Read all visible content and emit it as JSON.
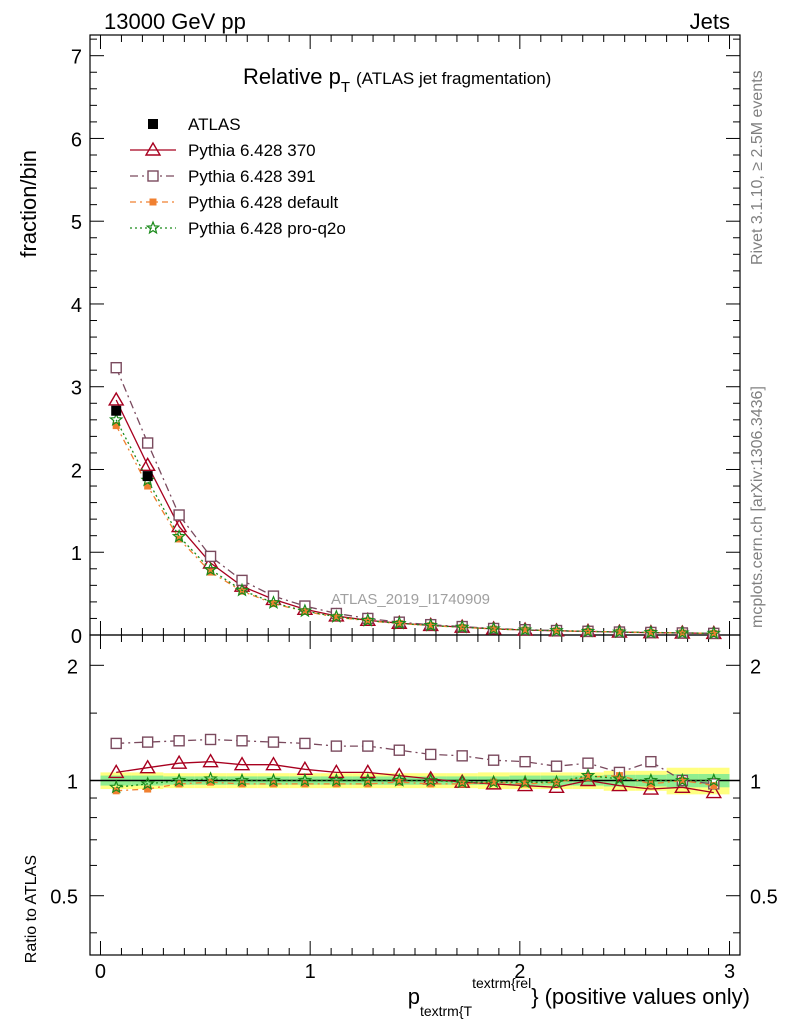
{
  "header": {
    "left": "13000 GeV pp",
    "right": "Jets"
  },
  "side_text": {
    "upper": "Rivet 3.1.10, ≥ 2.5M events",
    "lower": "mcplots.cern.ch [arXiv:1306.3436]"
  },
  "analysis_label": "ATLAS_2019_I1740909",
  "chart_data": [
    {
      "type": "line",
      "panel": "main",
      "title_main": "Relative p",
      "title_sub": "T",
      "title_rest": "(ATLAS jet fragmentation)",
      "ylabel": "fraction/bin",
      "xlim": [
        -0.05,
        3.05
      ],
      "ylim": [
        0,
        7.25
      ],
      "y_ticks": [
        "0",
        "1",
        "2",
        "3",
        "4",
        "5",
        "6",
        "7"
      ],
      "grid": false,
      "legend_position": "top-left",
      "x": [
        0.075,
        0.225,
        0.375,
        0.525,
        0.675,
        0.825,
        0.975,
        1.125,
        1.275,
        1.425,
        1.575,
        1.725,
        1.875,
        2.025,
        2.175,
        2.325,
        2.475,
        2.625,
        2.775,
        2.925
      ],
      "series": [
        {
          "name": "ATLAS",
          "color": "#000000",
          "marker": "square-filled",
          "values": [
            2.71,
            1.92,
            1.18,
            0.78,
            0.54,
            0.39,
            0.29,
            0.22,
            0.175,
            0.14,
            0.115,
            0.095,
            0.075,
            0.062,
            0.052,
            0.043,
            0.036,
            0.03,
            0.025,
            0.021
          ]
        },
        {
          "name": "Pythia 6.428 370",
          "color": "#a8001f",
          "marker": "triangle-open",
          "dash": "solid",
          "values": [
            2.84,
            2.05,
            1.31,
            0.87,
            0.59,
            0.43,
            0.31,
            0.23,
            0.178,
            0.142,
            0.116,
            0.095,
            0.074,
            0.06,
            0.05,
            0.043,
            0.035,
            0.028,
            0.024,
            0.019
          ]
        },
        {
          "name": "Pythia 6.428 391",
          "color": "#7a4a5e",
          "marker": "square-open",
          "dash": "dashdot",
          "values": [
            3.23,
            2.32,
            1.45,
            0.95,
            0.66,
            0.47,
            0.35,
            0.26,
            0.2,
            0.155,
            0.125,
            0.102,
            0.079,
            0.064,
            0.054,
            0.045,
            0.036,
            0.031,
            0.025,
            0.02
          ]
        },
        {
          "name": "Pythia 6.428 default",
          "color": "#f08030",
          "marker": "square-filled-small",
          "dash": "dashdot-orange",
          "values": [
            2.53,
            1.8,
            1.16,
            0.76,
            0.53,
            0.38,
            0.285,
            0.215,
            0.172,
            0.138,
            0.113,
            0.092,
            0.073,
            0.061,
            0.051,
            0.044,
            0.036,
            0.029,
            0.025,
            0.02
          ]
        },
        {
          "name": "Pythia 6.428 pro-q2o",
          "color": "#1a8a1a",
          "marker": "star",
          "dash": "dotted",
          "values": [
            2.6,
            1.87,
            1.19,
            0.79,
            0.54,
            0.39,
            0.29,
            0.22,
            0.175,
            0.14,
            0.115,
            0.094,
            0.074,
            0.061,
            0.052,
            0.044,
            0.036,
            0.03,
            0.025,
            0.021
          ]
        }
      ]
    },
    {
      "type": "line",
      "panel": "ratio",
      "ylabel": "Ratio to ATLAS",
      "xlabel_main": "p",
      "xlabel_sub": "textrm{T",
      "xlabel_sup": "textrm{rel",
      "xlabel_close": "}",
      "xlabel_rest": "(positive values only)",
      "xlim": [
        -0.05,
        3.05
      ],
      "ylim_log": [
        0.35,
        2.4
      ],
      "x_ticks": [
        "0",
        "1",
        "2",
        "3"
      ],
      "y_ticks": [
        "0.5",
        "1",
        "2"
      ],
      "reference": 1.0,
      "band_color_inner": "#90ee90",
      "band_color_outer": "#ffff80",
      "x": [
        0.075,
        0.225,
        0.375,
        0.525,
        0.675,
        0.825,
        0.975,
        1.125,
        1.275,
        1.425,
        1.575,
        1.725,
        1.875,
        2.025,
        2.175,
        2.325,
        2.475,
        2.625,
        2.775,
        2.925
      ],
      "band_inner": [
        0.03,
        0.03,
        0.025,
        0.025,
        0.025,
        0.025,
        0.025,
        0.025,
        0.025,
        0.025,
        0.025,
        0.025,
        0.025,
        0.03,
        0.03,
        0.03,
        0.035,
        0.035,
        0.04,
        0.04
      ],
      "band_outer": [
        0.05,
        0.05,
        0.045,
        0.045,
        0.045,
        0.045,
        0.045,
        0.045,
        0.045,
        0.045,
        0.045,
        0.045,
        0.05,
        0.05,
        0.05,
        0.05,
        0.06,
        0.06,
        0.08,
        0.08
      ],
      "series": [
        {
          "name": "Pythia 6.428 370",
          "color": "#a8001f",
          "marker": "triangle-open",
          "dash": "solid",
          "values": [
            1.05,
            1.08,
            1.11,
            1.12,
            1.1,
            1.1,
            1.07,
            1.05,
            1.05,
            1.03,
            1.01,
            0.99,
            0.98,
            0.97,
            0.96,
            1.0,
            0.97,
            0.95,
            0.96,
            0.93
          ]
        },
        {
          "name": "Pythia 6.428 391",
          "color": "#7a4a5e",
          "marker": "square-open",
          "dash": "dashdot",
          "values": [
            1.25,
            1.26,
            1.27,
            1.28,
            1.27,
            1.26,
            1.25,
            1.23,
            1.23,
            1.2,
            1.17,
            1.16,
            1.13,
            1.12,
            1.09,
            1.11,
            1.05,
            1.12,
            1.0,
            0.98
          ]
        },
        {
          "name": "Pythia 6.428 default",
          "color": "#f08030",
          "marker": "square-filled-small",
          "dash": "dashdot-orange",
          "values": [
            0.94,
            0.95,
            0.98,
            0.99,
            0.98,
            0.98,
            0.98,
            0.98,
            0.98,
            0.99,
            0.98,
            0.98,
            0.99,
            0.98,
            0.99,
            1.02,
            1.03,
            0.98,
            1.0,
            0.97
          ]
        },
        {
          "name": "Pythia 6.428 pro-q2o",
          "color": "#1a8a1a",
          "marker": "star",
          "dash": "dotted",
          "values": [
            0.96,
            0.98,
            1.0,
            1.01,
            1.0,
            1.0,
            1.0,
            1.0,
            1.0,
            1.0,
            1.0,
            0.99,
            0.99,
            0.99,
            0.99,
            1.03,
            1.01,
            1.0,
            1.0,
            1.0
          ]
        }
      ]
    }
  ]
}
